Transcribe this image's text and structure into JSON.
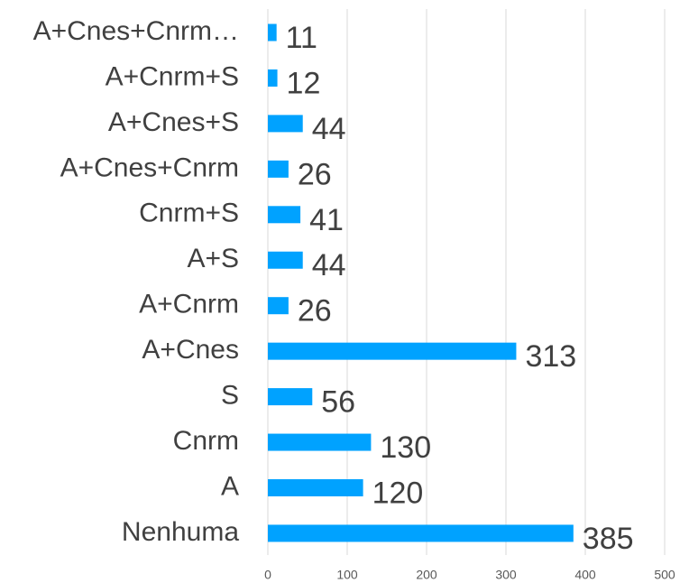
{
  "chart_data": {
    "type": "bar",
    "orientation": "horizontal",
    "categories": [
      "A+Cnes+Cnrm…",
      "A+Cnrm+S",
      "A+Cnes+S",
      "A+Cnes+Cnrm",
      "Cnrm+S",
      "A+S",
      "A+Cnrm",
      "A+Cnes",
      "S",
      "Cnrm",
      "A",
      "Nenhuma"
    ],
    "values": [
      11,
      12,
      44,
      26,
      41,
      44,
      26,
      313,
      56,
      130,
      120,
      385
    ],
    "color": "#00a2ff",
    "xlim": [
      0,
      500
    ],
    "xticks": [
      0,
      100,
      200,
      300,
      400,
      500
    ],
    "grid": true
  }
}
